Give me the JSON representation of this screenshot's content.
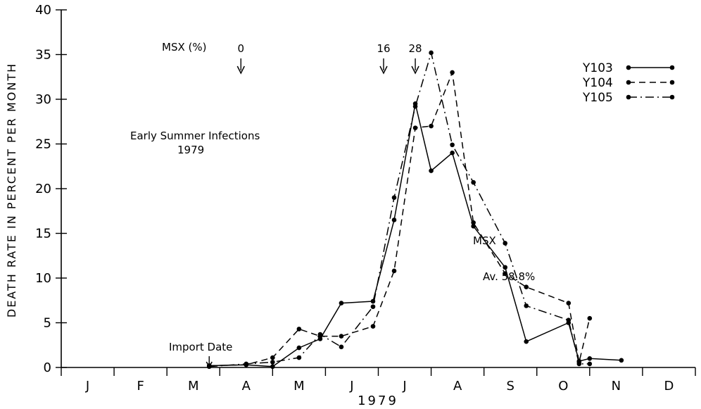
{
  "chart_data": {
    "type": "line",
    "title": "",
    "xlabel": "1979",
    "ylabel": "DEATH RATE IN PERCENT PER MONTH",
    "ylim": [
      0,
      40
    ],
    "xlim": [
      0,
      12
    ],
    "yticks": [
      0,
      5,
      10,
      15,
      20,
      25,
      30,
      35,
      40
    ],
    "month_labels": [
      "J",
      "F",
      "M",
      "A",
      "M",
      "J",
      "J",
      "A",
      "S",
      "O",
      "N",
      "D"
    ],
    "legend_position": "top-right",
    "series": [
      {
        "name": "Y103",
        "style": "solid",
        "x": [
          2.8,
          3.5,
          4.0,
          4.5,
          4.9,
          5.3,
          5.9,
          6.3,
          6.7,
          7.0,
          7.4,
          7.8,
          8.4,
          8.8,
          9.6,
          9.8,
          10.0,
          10.6,
          10.9,
          11.3,
          11.6,
          11.9
        ],
        "y": [
          0.2,
          0.3,
          0.1,
          2.2,
          3.2,
          7.2,
          7.4,
          16.5,
          29.5,
          22.0,
          24.0,
          15.8,
          11.2,
          2.9,
          5.0,
          0.7,
          1.0,
          0.8,
          null,
          null,
          null,
          null
        ]
      },
      {
        "name": "Y104",
        "style": "dashed",
        "x": [
          2.8,
          3.5,
          4.0,
          4.5,
          4.9,
          5.3,
          5.9,
          6.3,
          6.7,
          7.0,
          7.4,
          7.8,
          8.4,
          8.8,
          9.6,
          9.8,
          10.0
        ],
        "y": [
          0.2,
          0.3,
          1.1,
          4.3,
          3.5,
          3.5,
          4.6,
          10.8,
          26.8,
          27.0,
          33.0,
          16.2,
          10.5,
          9.0,
          7.2,
          0.6,
          5.5
        ]
      },
      {
        "name": "Y105",
        "style": "dashdot",
        "x": [
          2.8,
          3.5,
          4.0,
          4.5,
          4.9,
          5.3,
          5.9,
          6.3,
          6.7,
          7.0,
          7.4,
          7.8,
          8.4,
          8.8,
          9.6,
          9.8,
          10.0
        ],
        "y": [
          0.1,
          0.4,
          0.6,
          1.1,
          3.7,
          2.3,
          6.8,
          19.0,
          29.2,
          35.2,
          24.9,
          20.7,
          13.9,
          6.9,
          5.3,
          0.4,
          0.4
        ]
      }
    ],
    "annotations": {
      "msx_label": "MSX (%)",
      "arrows": [
        {
          "label": "0",
          "x": 3.4
        },
        {
          "label": "16",
          "x": 6.1
        },
        {
          "label": "28",
          "x": 6.7
        }
      ],
      "early_summer_line1": "Early Summer Infections",
      "early_summer_line2": "1979",
      "msx_center": "MSX",
      "msx_average": "Av. 58.8%",
      "import_date": "Import Date",
      "import_x": 2.8
    }
  }
}
